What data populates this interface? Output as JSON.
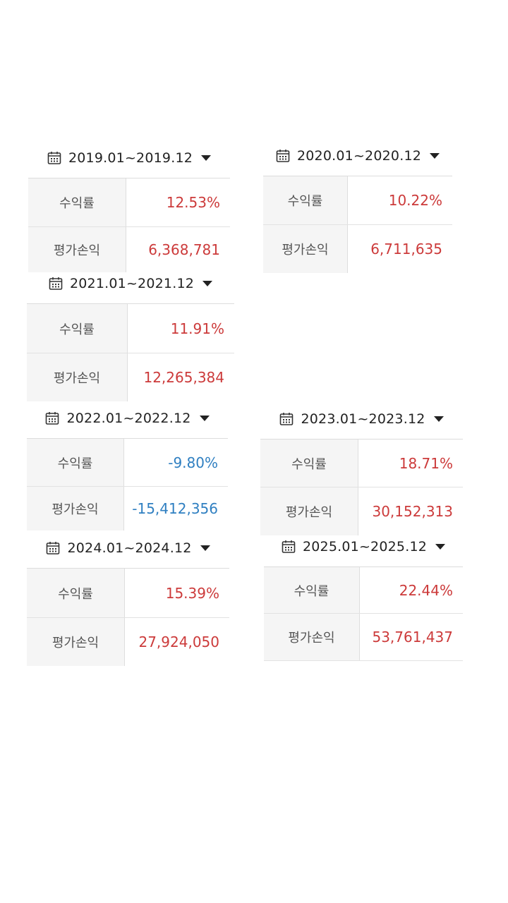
{
  "labels": {
    "return_rate": "수익률",
    "valuation_pl": "평가손익"
  },
  "colors": {
    "positive": "#cc3a3a",
    "negative": "#2f7fc1"
  },
  "icons": {
    "period": "calendar-icon",
    "dropdown": "caret-down-icon"
  },
  "cards": [
    {
      "period": "2019.01~2019.12",
      "return_rate": "12.53%",
      "valuation_pl": "6,368,781",
      "sign": "positive"
    },
    {
      "period": "2020.01~2020.12",
      "return_rate": "10.22%",
      "valuation_pl": "6,711,635",
      "sign": "positive"
    },
    {
      "period": "2021.01~2021.12",
      "return_rate": "11.91%",
      "valuation_pl": "12,265,384",
      "sign": "positive"
    },
    {
      "period": "2022.01~2022.12",
      "return_rate": "-9.80%",
      "valuation_pl": "-15,412,356",
      "sign": "negative"
    },
    {
      "period": "2023.01~2023.12",
      "return_rate": "18.71%",
      "valuation_pl": "30,152,313",
      "sign": "positive"
    },
    {
      "period": "2024.01~2024.12",
      "return_rate": "15.39%",
      "valuation_pl": "27,924,050",
      "sign": "positive"
    },
    {
      "period": "2025.01~2025.12",
      "return_rate": "22.44%",
      "valuation_pl": "53,761,437",
      "sign": "positive"
    }
  ]
}
